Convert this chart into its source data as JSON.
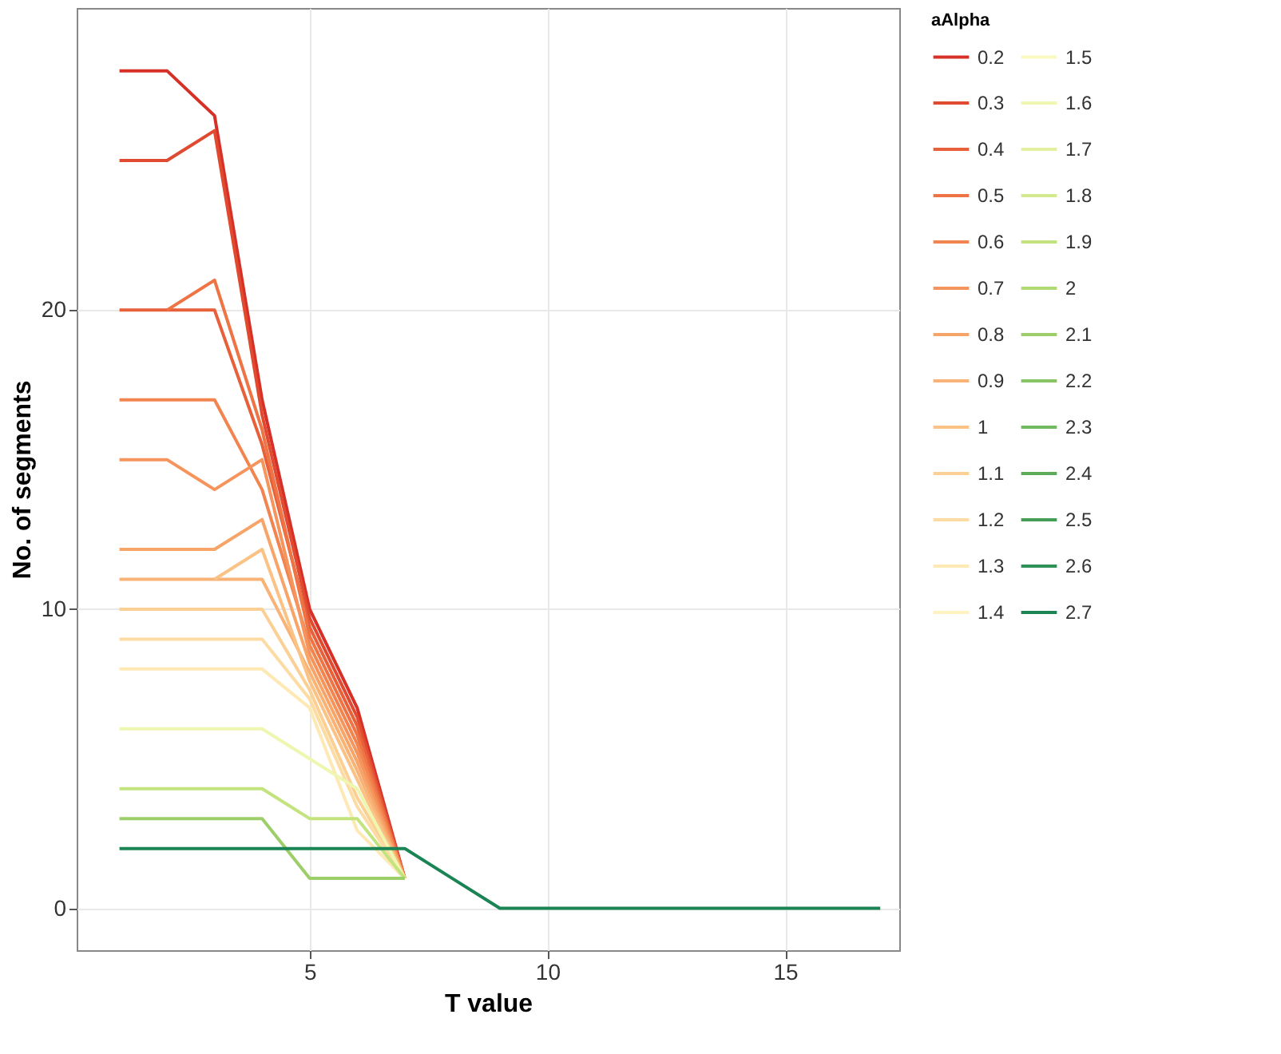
{
  "chart_data": {
    "type": "line",
    "xlabel": "T value",
    "ylabel": "No. of segments",
    "legend_title": "aAlpha",
    "legend": "right",
    "grid": true,
    "x": [
      1,
      2,
      3,
      4,
      5,
      6,
      7,
      8,
      9,
      10,
      11,
      12,
      13,
      14,
      15,
      16,
      17
    ],
    "xlim": [
      0.1,
      17.4
    ],
    "xticks": [
      5,
      10,
      15
    ],
    "ylim": [
      -1.4,
      30.1
    ],
    "yticks": [
      0,
      10,
      20
    ],
    "series": [
      {
        "name": "0.2",
        "color": "#d73027",
        "x": [
          1,
          2,
          3,
          4,
          5,
          6,
          7
        ],
        "values": [
          28,
          28,
          26.5,
          17,
          10,
          6.7,
          1
        ]
      },
      {
        "name": "0.3",
        "color": "#e04a30",
        "x": [
          1,
          2,
          3,
          4,
          5,
          6,
          7
        ],
        "values": [
          25,
          25,
          26,
          16.5,
          9.7,
          6.4,
          1
        ]
      },
      {
        "name": "0.4",
        "color": "#e8603a",
        "x": [
          1,
          3,
          4,
          5,
          6,
          7
        ],
        "values": [
          20,
          20,
          15.5,
          9.4,
          6.1,
          1
        ]
      },
      {
        "name": "0.5",
        "color": "#ee7445",
        "x": [
          2,
          3,
          4,
          5,
          6,
          7
        ],
        "values": [
          20,
          21,
          16,
          9.1,
          5.8,
          1
        ]
      },
      {
        "name": "0.6",
        "color": "#f28450",
        "x": [
          1,
          2,
          3,
          4,
          5,
          6,
          7
        ],
        "values": [
          17,
          17,
          17,
          14,
          8.8,
          5.5,
          1
        ]
      },
      {
        "name": "0.7",
        "color": "#f5945c",
        "x": [
          1,
          2,
          3,
          4,
          5,
          6,
          7
        ],
        "values": [
          15,
          15,
          14,
          15,
          8.5,
          5.2,
          1
        ]
      },
      {
        "name": "0.8",
        "color": "#f7a468",
        "x": [
          1,
          2,
          3,
          4,
          5,
          6,
          7
        ],
        "values": [
          12,
          12,
          12,
          13,
          8.2,
          4.9,
          1
        ]
      },
      {
        "name": "0.9",
        "color": "#f9b377",
        "x": [
          1,
          4,
          5,
          6,
          7
        ],
        "values": [
          11,
          11,
          7.9,
          4.6,
          1
        ]
      },
      {
        "name": "1",
        "color": "#fbc286",
        "x": [
          3,
          4,
          5,
          6,
          7
        ],
        "values": [
          11,
          12,
          7.6,
          4.3,
          1
        ]
      },
      {
        "name": "1.1",
        "color": "#fcd095",
        "x": [
          1,
          2,
          3,
          4,
          5,
          6,
          7
        ],
        "values": [
          10,
          10,
          10,
          10,
          7.3,
          3.7,
          1
        ]
      },
      {
        "name": "1.2",
        "color": "#fddca4",
        "x": [
          1,
          2,
          3,
          4,
          5,
          6,
          7
        ],
        "values": [
          9,
          9,
          9,
          9,
          7.0,
          3.4,
          1
        ]
      },
      {
        "name": "1.3",
        "color": "#fee8b3",
        "x": [
          1,
          2,
          3,
          4,
          5,
          6,
          7
        ],
        "values": [
          8,
          8,
          8,
          8,
          6.7,
          2.6,
          1
        ]
      },
      {
        "name": "1.4",
        "color": "#fef2c0",
        "values": [
          null,
          null,
          null,
          null,
          null,
          null,
          null,
          null,
          null,
          null,
          null,
          null,
          null,
          null,
          null,
          null,
          null
        ]
      },
      {
        "name": "1.5",
        "color": "#fafac0",
        "values": [
          null,
          null,
          null,
          null,
          null,
          null,
          null,
          null,
          null,
          null,
          null,
          null,
          null,
          null,
          null,
          null,
          null
        ]
      },
      {
        "name": "1.6",
        "color": "#eef6b0",
        "x": [
          1,
          2,
          3,
          4,
          5,
          6,
          7
        ],
        "values": [
          6,
          6,
          6,
          6,
          5,
          4,
          1
        ]
      },
      {
        "name": "1.7",
        "color": "#e2f0a0",
        "values": [
          null,
          null,
          null,
          null,
          null,
          null,
          null,
          null,
          null,
          null,
          null,
          null,
          null,
          null,
          null,
          null,
          null
        ]
      },
      {
        "name": "1.8",
        "color": "#d3ea8e",
        "values": [
          null,
          null,
          null,
          null,
          null,
          null,
          null,
          null,
          null,
          null,
          null,
          null,
          null,
          null,
          null,
          null,
          null
        ]
      },
      {
        "name": "1.9",
        "color": "#c2e37e",
        "x": [
          1,
          2,
          3,
          4,
          5,
          6,
          7
        ],
        "values": [
          4,
          4,
          4,
          4,
          3,
          3,
          1
        ]
      },
      {
        "name": "2",
        "color": "#b0da72",
        "values": [
          null,
          null,
          null,
          null,
          null,
          null,
          null,
          null,
          null,
          null,
          null,
          null,
          null,
          null,
          null,
          null,
          null
        ]
      },
      {
        "name": "2.1",
        "color": "#9ccf6a",
        "x": [
          1,
          2,
          3,
          4,
          5,
          6,
          7
        ],
        "values": [
          3,
          3,
          3,
          3,
          1,
          1,
          1
        ]
      },
      {
        "name": "2.2",
        "color": "#88c463",
        "values": [
          null,
          null,
          null,
          null,
          null,
          null,
          null,
          null,
          null,
          null,
          null,
          null,
          null,
          null,
          null,
          null,
          null
        ]
      },
      {
        "name": "2.3",
        "color": "#72b85e",
        "values": [
          null,
          null,
          null,
          null,
          null,
          null,
          null,
          null,
          null,
          null,
          null,
          null,
          null,
          null,
          null,
          null,
          null
        ]
      },
      {
        "name": "2.4",
        "color": "#5cab5a",
        "values": [
          null,
          null,
          null,
          null,
          null,
          null,
          null,
          null,
          null,
          null,
          null,
          null,
          null,
          null,
          null,
          null,
          null
        ]
      },
      {
        "name": "2.5",
        "color": "#459e57",
        "values": [
          null,
          null,
          null,
          null,
          null,
          null,
          null,
          null,
          null,
          null,
          null,
          null,
          null,
          null,
          null,
          null,
          null
        ]
      },
      {
        "name": "2.6",
        "color": "#2e9155",
        "values": [
          null,
          null,
          null,
          null,
          null,
          null,
          null,
          null,
          null,
          null,
          null,
          null,
          null,
          null,
          null,
          null,
          null
        ]
      },
      {
        "name": "2.7",
        "color": "#1a8454",
        "values": [
          2,
          2,
          2,
          2,
          2,
          2,
          2,
          1,
          0,
          0,
          0,
          0,
          0,
          0,
          0,
          0,
          0
        ]
      }
    ]
  }
}
